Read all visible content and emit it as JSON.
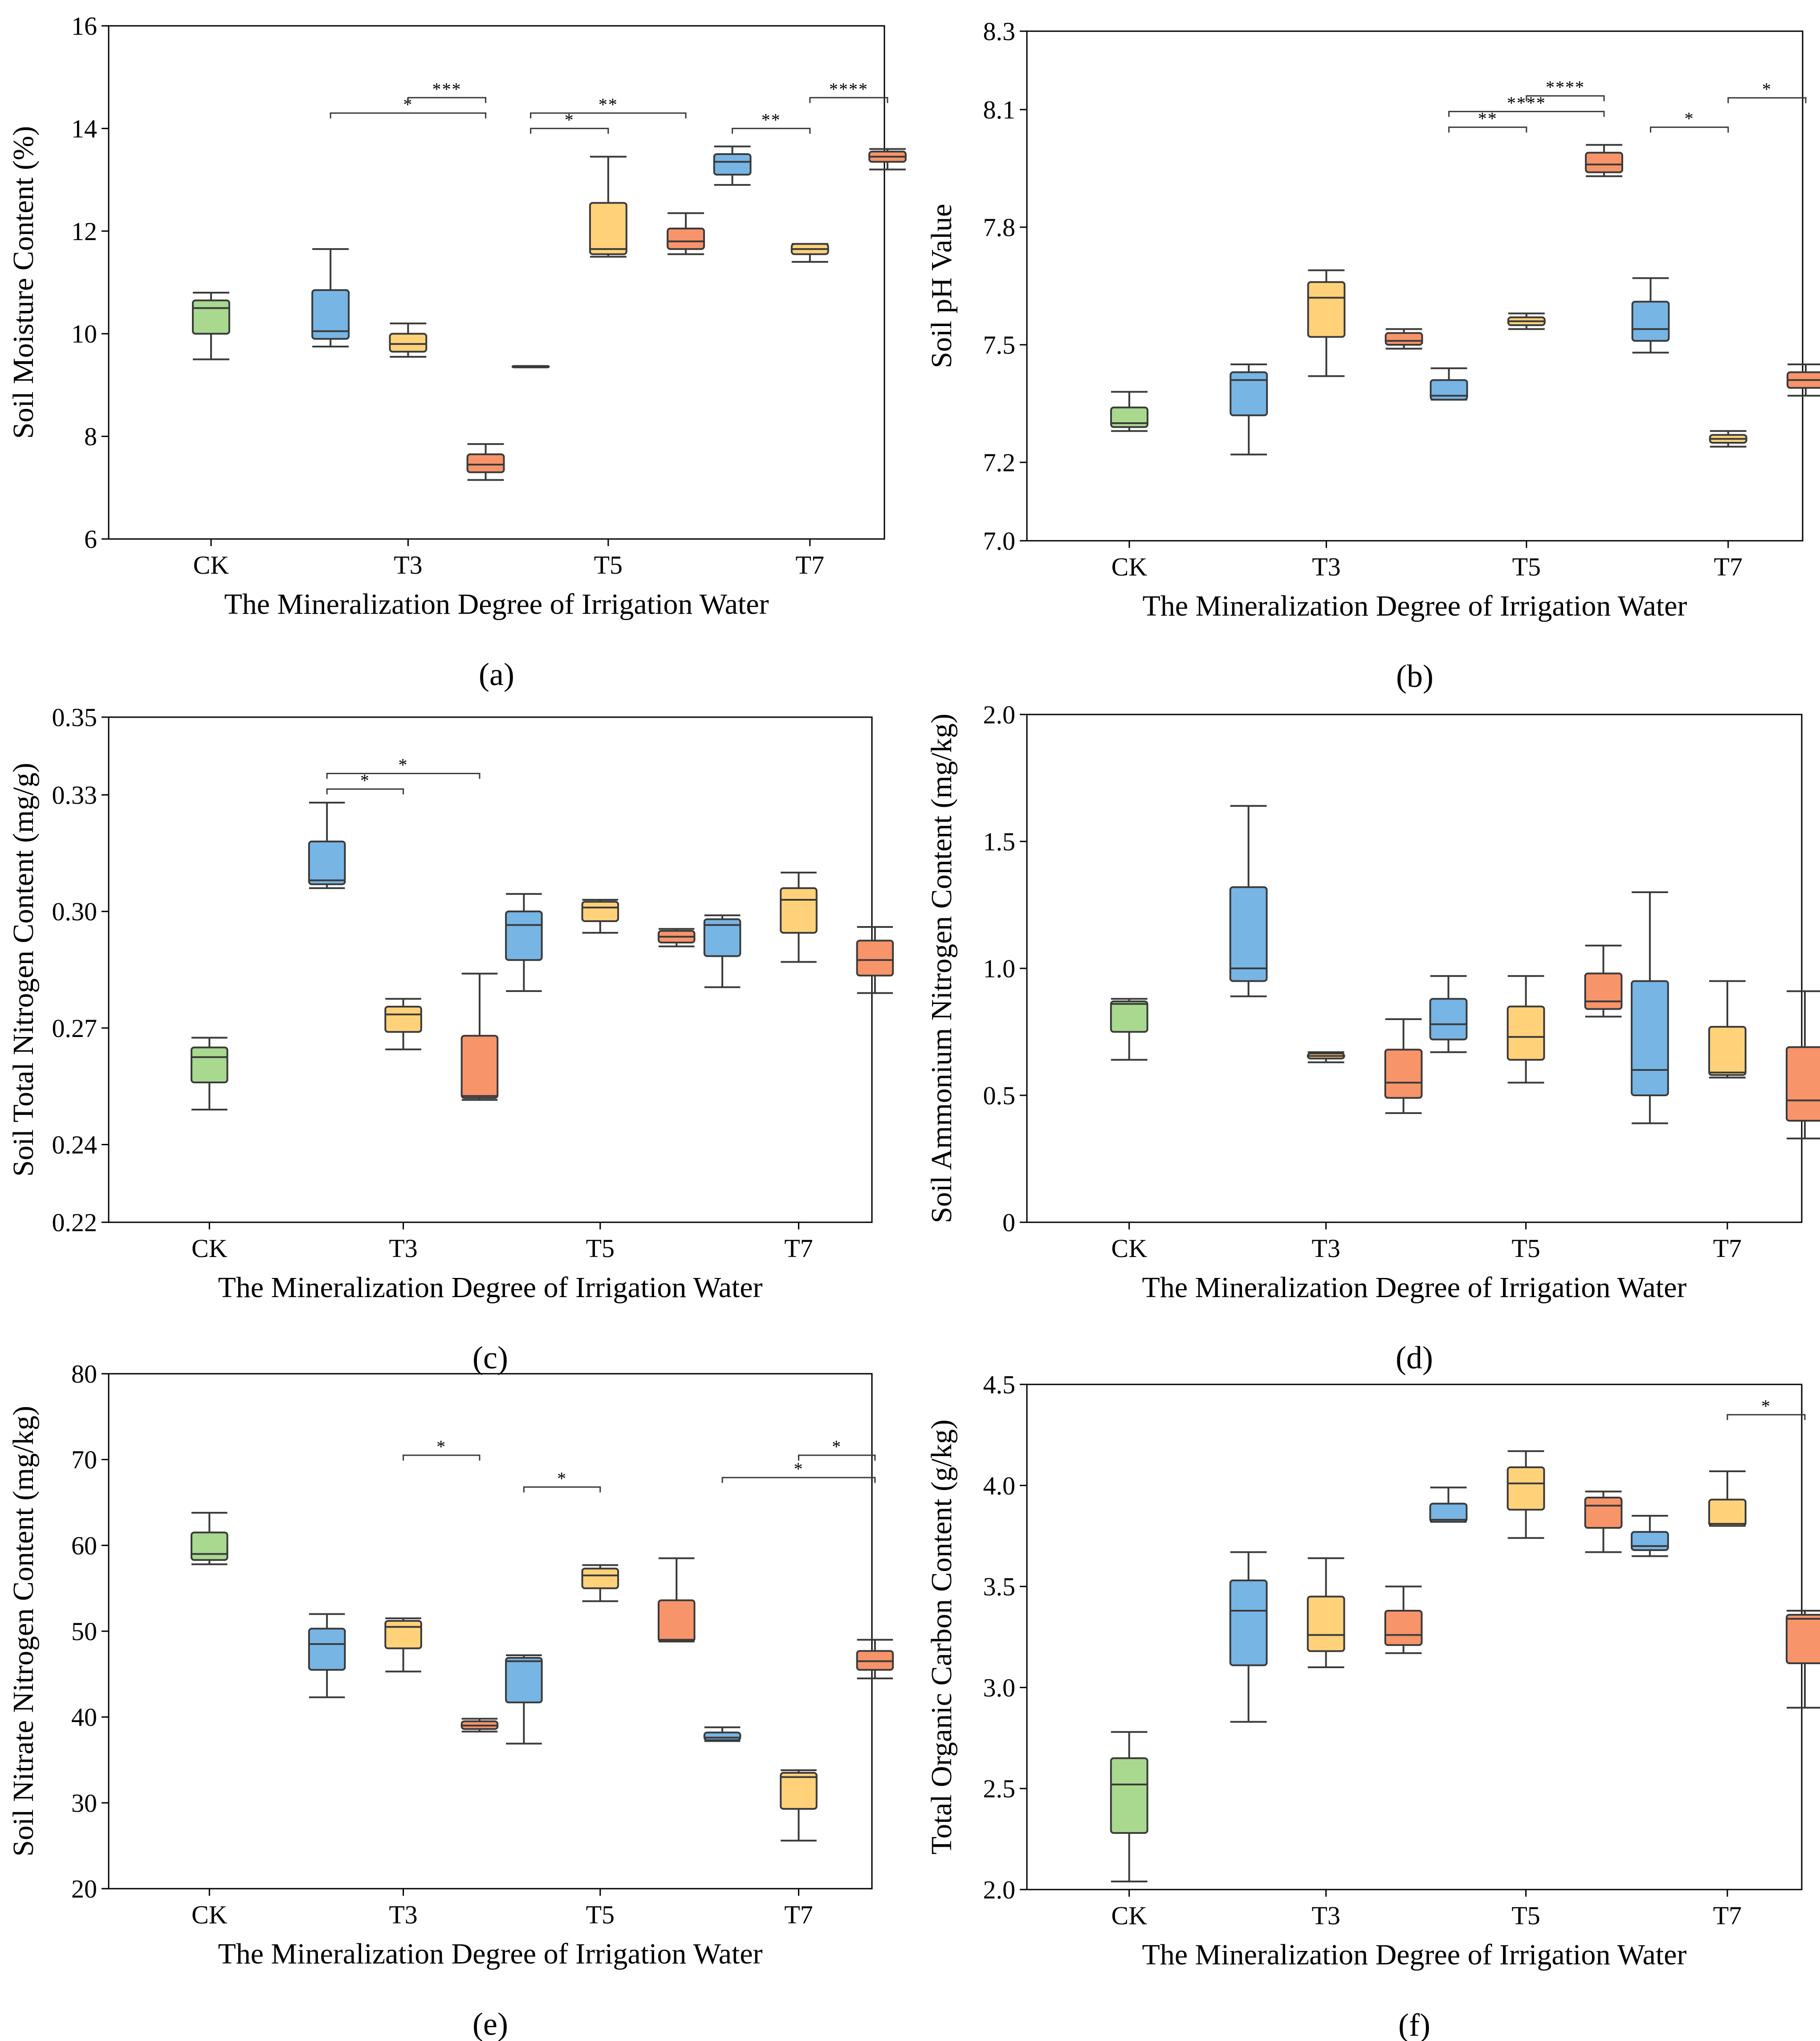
{
  "colors": {
    "CK": "#a8d98f",
    "S1": "#77b5e5",
    "S2": "#ffd27a",
    "S3": "#f7946a",
    "line": "#3a3a3a",
    "frame": "#000000"
  },
  "chart_data": [
    {
      "panel": "a",
      "panel_label": "(a)",
      "type": "box",
      "xlabel": "The Mineralization Degree of Irrigation Water",
      "ylabel": "Soil Moisture Content (%)",
      "ylim": [
        6,
        16
      ],
      "yticks": [
        6,
        8,
        10,
        12,
        14,
        16
      ],
      "ytick_labels": [
        "6",
        "8",
        "10",
        "12",
        "14",
        "16"
      ],
      "categories": [
        "CK",
        "T3",
        "T5",
        "T7"
      ],
      "boxes": [
        {
          "group": "CK",
          "series": "CK",
          "min": 9.5,
          "q1": 10.0,
          "median": 10.5,
          "q3": 10.65,
          "max": 10.8
        },
        {
          "group": "T3",
          "series": "S1",
          "min": 9.75,
          "q1": 9.9,
          "median": 10.05,
          "q3": 10.85,
          "max": 11.65
        },
        {
          "group": "T3",
          "series": "S2",
          "min": 9.55,
          "q1": 9.65,
          "median": 9.8,
          "q3": 10.0,
          "max": 10.2
        },
        {
          "group": "T3",
          "series": "S3",
          "min": 7.15,
          "q1": 7.3,
          "median": 7.45,
          "q3": 7.65,
          "max": 7.85
        },
        {
          "group": "T5",
          "series": "S1",
          "min": 9.35,
          "q1": 9.35,
          "median": 9.35,
          "q3": 9.37,
          "max": 9.37
        },
        {
          "group": "T5",
          "series": "S2",
          "min": 11.5,
          "q1": 11.55,
          "median": 11.65,
          "q3": 12.55,
          "max": 13.45
        },
        {
          "group": "T5",
          "series": "S3",
          "min": 11.55,
          "q1": 11.65,
          "median": 11.8,
          "q3": 12.05,
          "max": 12.35
        },
        {
          "group": "T7",
          "series": "S1",
          "min": 12.9,
          "q1": 13.1,
          "median": 13.35,
          "q3": 13.5,
          "max": 13.65
        },
        {
          "group": "T7",
          "series": "S2",
          "min": 11.4,
          "q1": 11.55,
          "median": 11.65,
          "q3": 11.75,
          "max": 11.75
        },
        {
          "group": "T7",
          "series": "S3",
          "min": 13.2,
          "q1": 13.35,
          "median": 13.45,
          "q3": 13.55,
          "max": 13.6
        }
      ],
      "annotations": [
        {
          "from": "T3.S1",
          "to": "T3.S3",
          "level": 14.3,
          "label": "*"
        },
        {
          "from": "T3.S2",
          "to": "T3.S3",
          "level": 14.6,
          "label": "***"
        },
        {
          "from": "T5.S1",
          "to": "T5.S2",
          "level": 14.0,
          "label": "*"
        },
        {
          "from": "T5.S1",
          "to": "T5.S3",
          "level": 14.3,
          "label": "**"
        },
        {
          "from": "T7.S1",
          "to": "T7.S2",
          "level": 14.0,
          "label": "**"
        },
        {
          "from": "T7.S2",
          "to": "T7.S3",
          "level": 14.6,
          "label": "****"
        }
      ]
    },
    {
      "panel": "b",
      "panel_label": "(b)",
      "type": "box",
      "xlabel": "The Mineralization Degree of Irrigation Water",
      "ylabel": "Soil pH Value",
      "ylim": [
        7.0,
        8.3
      ],
      "yticks": [
        7.0,
        7.2,
        7.5,
        7.8,
        8.1,
        8.3
      ],
      "ytick_labels": [
        "7.0",
        "7.2",
        "7.5",
        "7.8",
        "8.1",
        "8.3"
      ],
      "categories": [
        "CK",
        "T3",
        "T5",
        "T7"
      ],
      "boxes": [
        {
          "group": "CK",
          "series": "CK",
          "min": 7.28,
          "q1": 7.29,
          "median": 7.3,
          "q3": 7.34,
          "max": 7.38
        },
        {
          "group": "T3",
          "series": "S1",
          "min": 7.22,
          "q1": 7.32,
          "median": 7.41,
          "q3": 7.43,
          "max": 7.45
        },
        {
          "group": "T3",
          "series": "S2",
          "min": 7.42,
          "q1": 7.52,
          "median": 7.62,
          "q3": 7.66,
          "max": 7.69
        },
        {
          "group": "T3",
          "series": "S3",
          "min": 7.49,
          "q1": 7.5,
          "median": 7.51,
          "q3": 7.53,
          "max": 7.54
        },
        {
          "group": "T5",
          "series": "S1",
          "min": 7.36,
          "q1": 7.36,
          "median": 7.37,
          "q3": 7.41,
          "max": 7.44
        },
        {
          "group": "T5",
          "series": "S2",
          "min": 7.54,
          "q1": 7.55,
          "median": 7.56,
          "q3": 7.57,
          "max": 7.58
        },
        {
          "group": "T5",
          "series": "S3",
          "min": 7.93,
          "q1": 7.94,
          "median": 7.96,
          "q3": 7.99,
          "max": 8.01
        },
        {
          "group": "T7",
          "series": "S1",
          "min": 7.48,
          "q1": 7.51,
          "median": 7.54,
          "q3": 7.61,
          "max": 7.67
        },
        {
          "group": "T7",
          "series": "S2",
          "min": 7.24,
          "q1": 7.25,
          "median": 7.26,
          "q3": 7.27,
          "max": 7.28
        },
        {
          "group": "T7",
          "series": "S3",
          "min": 7.37,
          "q1": 7.39,
          "median": 7.41,
          "q3": 7.43,
          "max": 7.45
        }
      ],
      "annotations": [
        {
          "from": "T5.S1",
          "to": "T5.S2",
          "level": 8.055,
          "label": "**"
        },
        {
          "from": "T5.S1",
          "to": "T5.S3",
          "level": 8.095,
          "label": "****"
        },
        {
          "from": "T5.S2",
          "to": "T5.S3",
          "level": 8.135,
          "label": "****"
        },
        {
          "from": "T7.S1",
          "to": "T7.S2",
          "level": 8.055,
          "label": "*"
        },
        {
          "from": "T7.S2",
          "to": "T7.S3",
          "level": 8.13,
          "label": "*"
        }
      ]
    },
    {
      "panel": "c",
      "panel_label": "(c)",
      "type": "box",
      "xlabel": "The Mineralization Degree of Irrigation Water",
      "ylabel": "Soil Total Nitrogen Content (mg/g)",
      "ylim": [
        0.22,
        0.35
      ],
      "yticks": [
        0.22,
        0.24,
        0.27,
        0.3,
        0.33,
        0.35
      ],
      "ytick_labels": [
        "0.22",
        "0.24",
        "0.27",
        "0.30",
        "0.33",
        "0.35"
      ],
      "categories": [
        "CK",
        "T3",
        "T5",
        "T7"
      ],
      "boxes": [
        {
          "group": "CK",
          "series": "CK",
          "min": 0.249,
          "q1": 0.256,
          "median": 0.2625,
          "q3": 0.265,
          "max": 0.2675
        },
        {
          "group": "T3",
          "series": "S1",
          "min": 0.306,
          "q1": 0.307,
          "median": 0.308,
          "q3": 0.318,
          "max": 0.328
        },
        {
          "group": "T3",
          "series": "S2",
          "min": 0.2645,
          "q1": 0.269,
          "median": 0.2735,
          "q3": 0.2755,
          "max": 0.2775
        },
        {
          "group": "T3",
          "series": "S3",
          "min": 0.2515,
          "q1": 0.252,
          "median": 0.2525,
          "q3": 0.268,
          "max": 0.284
        },
        {
          "group": "T5",
          "series": "S1",
          "min": 0.2795,
          "q1": 0.2875,
          "median": 0.2965,
          "q3": 0.3,
          "max": 0.3045
        },
        {
          "group": "T5",
          "series": "S2",
          "min": 0.2945,
          "q1": 0.2975,
          "median": 0.301,
          "q3": 0.3025,
          "max": 0.303
        },
        {
          "group": "T5",
          "series": "S3",
          "min": 0.291,
          "q1": 0.292,
          "median": 0.2935,
          "q3": 0.295,
          "max": 0.2955
        },
        {
          "group": "T7",
          "series": "S1",
          "min": 0.2805,
          "q1": 0.2885,
          "median": 0.2965,
          "q3": 0.298,
          "max": 0.299
        },
        {
          "group": "T7",
          "series": "S2",
          "min": 0.287,
          "q1": 0.2945,
          "median": 0.303,
          "q3": 0.306,
          "max": 0.31
        },
        {
          "group": "T7",
          "series": "S3",
          "min": 0.279,
          "q1": 0.2835,
          "median": 0.2875,
          "q3": 0.2925,
          "max": 0.296
        }
      ],
      "annotations": [
        {
          "from": "T3.S1",
          "to": "T3.S2",
          "level": 0.3315,
          "label": "*"
        },
        {
          "from": "T3.S1",
          "to": "T3.S3",
          "level": 0.3355,
          "label": "*"
        }
      ]
    },
    {
      "panel": "d",
      "panel_label": "(d)",
      "type": "box",
      "xlabel": "The Mineralization Degree of Irrigation Water",
      "ylabel": "Soil Ammonium Nitrogen Content (mg/kg)",
      "ylim": [
        0,
        2.0
      ],
      "yticks": [
        0,
        0.5,
        1.0,
        1.5,
        2.0
      ],
      "ytick_labels": [
        "0",
        "0.5",
        "1.0",
        "1.5",
        "2.0"
      ],
      "categories": [
        "CK",
        "T3",
        "T5",
        "T7"
      ],
      "boxes": [
        {
          "group": "CK",
          "series": "CK",
          "min": 0.64,
          "q1": 0.75,
          "median": 0.86,
          "q3": 0.87,
          "max": 0.88
        },
        {
          "group": "T3",
          "series": "S1",
          "min": 0.89,
          "q1": 0.95,
          "median": 1.0,
          "q3": 1.32,
          "max": 1.64
        },
        {
          "group": "T3",
          "series": "S2",
          "min": 0.63,
          "q1": 0.645,
          "median": 0.655,
          "q3": 0.665,
          "max": 0.67
        },
        {
          "group": "T3",
          "series": "S3",
          "min": 0.43,
          "q1": 0.49,
          "median": 0.55,
          "q3": 0.68,
          "max": 0.8
        },
        {
          "group": "T5",
          "series": "S1",
          "min": 0.67,
          "q1": 0.72,
          "median": 0.78,
          "q3": 0.88,
          "max": 0.97
        },
        {
          "group": "T5",
          "series": "S2",
          "min": 0.55,
          "q1": 0.64,
          "median": 0.73,
          "q3": 0.85,
          "max": 0.97
        },
        {
          "group": "T5",
          "series": "S3",
          "min": 0.81,
          "q1": 0.84,
          "median": 0.87,
          "q3": 0.98,
          "max": 1.09
        },
        {
          "group": "T7",
          "series": "S1",
          "min": 0.39,
          "q1": 0.5,
          "median": 0.6,
          "q3": 0.95,
          "max": 1.3
        },
        {
          "group": "T7",
          "series": "S2",
          "min": 0.57,
          "q1": 0.58,
          "median": 0.59,
          "q3": 0.77,
          "max": 0.95
        },
        {
          "group": "T7",
          "series": "S3",
          "min": 0.33,
          "q1": 0.4,
          "median": 0.48,
          "q3": 0.69,
          "max": 0.91
        }
      ],
      "annotations": []
    },
    {
      "panel": "e",
      "panel_label": "(e)",
      "type": "box",
      "xlabel": "The Mineralization Degree of Irrigation Water",
      "ylabel": "Soil Nitrate Nitrogen Content (mg/kg)",
      "ylim": [
        20,
        80
      ],
      "yticks": [
        20,
        30,
        40,
        50,
        60,
        70,
        80
      ],
      "ytick_labels": [
        "20",
        "30",
        "40",
        "50",
        "60",
        "70",
        "80"
      ],
      "categories": [
        "CK",
        "T3",
        "T5",
        "T7"
      ],
      "boxes": [
        {
          "group": "CK",
          "series": "CK",
          "min": 57.8,
          "q1": 58.3,
          "median": 59.0,
          "q3": 61.5,
          "max": 63.8
        },
        {
          "group": "T3",
          "series": "S1",
          "min": 42.3,
          "q1": 45.5,
          "median": 48.5,
          "q3": 50.3,
          "max": 52.0
        },
        {
          "group": "T3",
          "series": "S2",
          "min": 45.3,
          "q1": 48.0,
          "median": 50.5,
          "q3": 51.2,
          "max": 51.5
        },
        {
          "group": "T3",
          "series": "S3",
          "min": 38.3,
          "q1": 38.6,
          "median": 39.0,
          "q3": 39.5,
          "max": 39.8
        },
        {
          "group": "T5",
          "series": "S1",
          "min": 36.9,
          "q1": 41.7,
          "median": 46.5,
          "q3": 46.9,
          "max": 47.2
        },
        {
          "group": "T5",
          "series": "S2",
          "min": 53.5,
          "q1": 55.0,
          "median": 56.5,
          "q3": 57.3,
          "max": 57.7
        },
        {
          "group": "T5",
          "series": "S3",
          "min": 48.8,
          "q1": 48.8,
          "median": 49.0,
          "q3": 53.6,
          "max": 58.5
        },
        {
          "group": "T7",
          "series": "S1",
          "min": 37.2,
          "q1": 37.3,
          "median": 37.6,
          "q3": 38.2,
          "max": 38.8
        },
        {
          "group": "T7",
          "series": "S2",
          "min": 25.6,
          "q1": 29.3,
          "median": 33.0,
          "q3": 33.5,
          "max": 33.8
        },
        {
          "group": "T7",
          "series": "S3",
          "min": 44.5,
          "q1": 45.5,
          "median": 46.5,
          "q3": 47.7,
          "max": 49.0
        }
      ],
      "annotations": [
        {
          "from": "T3.S2",
          "to": "T3.S3",
          "level": 70.5,
          "label": "*"
        },
        {
          "from": "T5.S1",
          "to": "T5.S2",
          "level": 66.8,
          "label": "*"
        },
        {
          "from": "T7.S1",
          "to": "T7.S3",
          "level": 67.9,
          "label": "*"
        },
        {
          "from": "T7.S2",
          "to": "T7.S3",
          "level": 70.5,
          "label": "*"
        }
      ]
    },
    {
      "panel": "f",
      "panel_label": "(f)",
      "type": "box",
      "xlabel": "The Mineralization Degree of Irrigation Water",
      "ylabel": "Total Organic Carbon Content (g/kg)",
      "ylim": [
        2.0,
        4.5
      ],
      "yticks": [
        2.0,
        2.5,
        3.0,
        3.5,
        4.0,
        4.5
      ],
      "ytick_labels": [
        "2.0",
        "2.5",
        "3.0",
        "3.5",
        "4.0",
        "4.5"
      ],
      "categories": [
        "CK",
        "T3",
        "T5",
        "T7"
      ],
      "boxes": [
        {
          "group": "CK",
          "series": "CK",
          "min": 2.04,
          "q1": 2.28,
          "median": 2.52,
          "q3": 2.65,
          "max": 2.78
        },
        {
          "group": "T3",
          "series": "S1",
          "min": 2.83,
          "q1": 3.11,
          "median": 3.38,
          "q3": 3.53,
          "max": 3.67
        },
        {
          "group": "T3",
          "series": "S2",
          "min": 3.1,
          "q1": 3.18,
          "median": 3.26,
          "q3": 3.45,
          "max": 3.64
        },
        {
          "group": "T3",
          "series": "S3",
          "min": 3.17,
          "q1": 3.21,
          "median": 3.26,
          "q3": 3.38,
          "max": 3.5
        },
        {
          "group": "T5",
          "series": "S1",
          "min": 3.82,
          "q1": 3.82,
          "median": 3.83,
          "q3": 3.91,
          "max": 3.99
        },
        {
          "group": "T5",
          "series": "S2",
          "min": 3.74,
          "q1": 3.88,
          "median": 4.01,
          "q3": 4.09,
          "max": 4.17
        },
        {
          "group": "T5",
          "series": "S3",
          "min": 3.67,
          "q1": 3.79,
          "median": 3.9,
          "q3": 3.94,
          "max": 3.97
        },
        {
          "group": "T7",
          "series": "S1",
          "min": 3.65,
          "q1": 3.68,
          "median": 3.7,
          "q3": 3.77,
          "max": 3.85
        },
        {
          "group": "T7",
          "series": "S2",
          "min": 3.8,
          "q1": 3.8,
          "median": 3.81,
          "q3": 3.93,
          "max": 4.07
        },
        {
          "group": "T7",
          "series": "S3",
          "min": 2.9,
          "q1": 3.12,
          "median": 3.34,
          "q3": 3.36,
          "max": 3.38
        }
      ],
      "annotations": [
        {
          "from": "T7.S2",
          "to": "T7.S3",
          "level": 4.35,
          "label": "*"
        }
      ]
    }
  ]
}
